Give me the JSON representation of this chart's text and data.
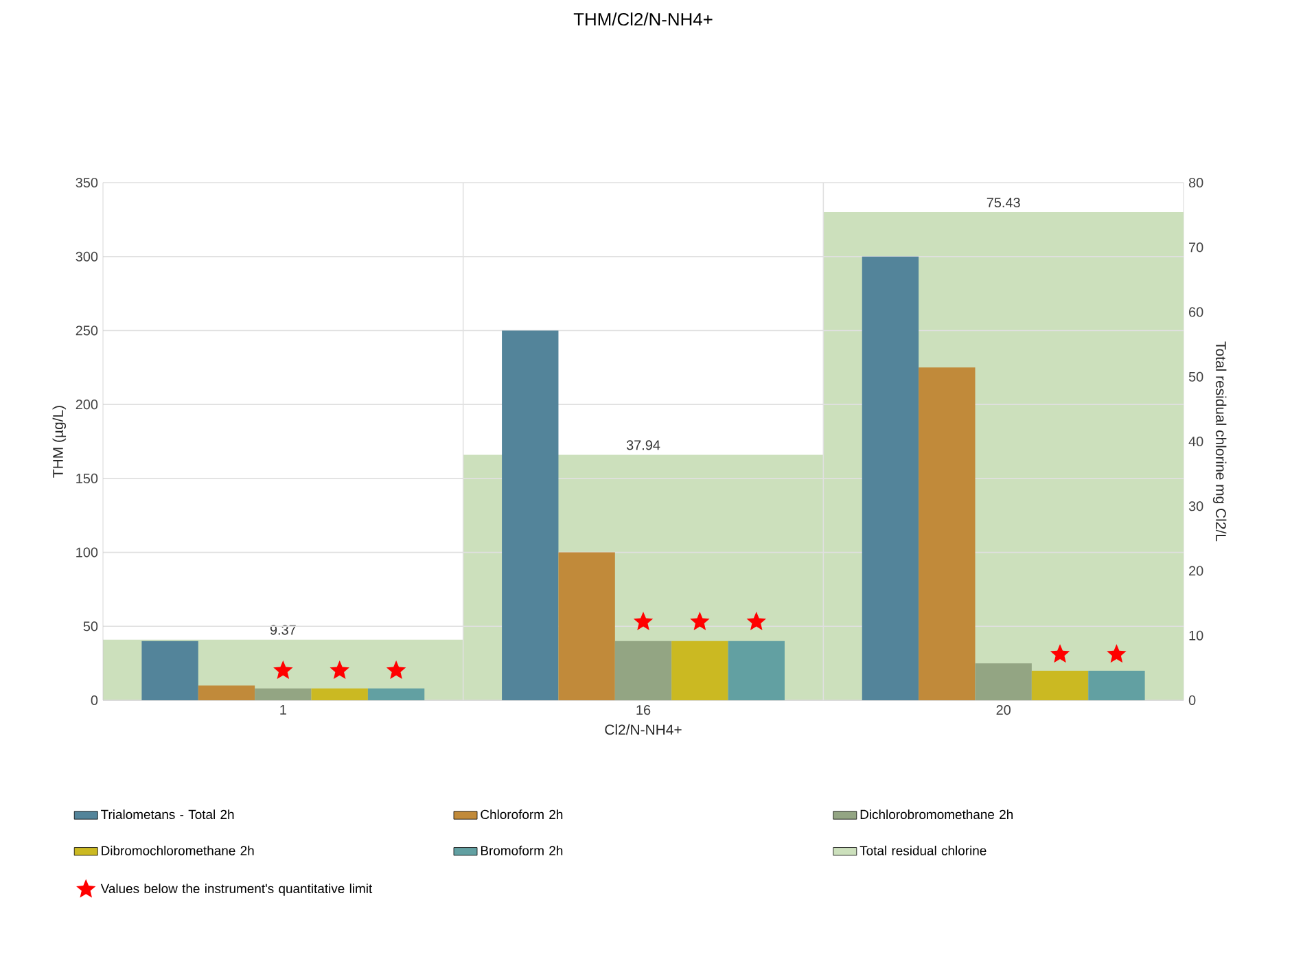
{
  "chart_data": {
    "type": "bar",
    "title": "THM/Cl2/N-NH4+",
    "xlabel": "Cl2/N-NH4+",
    "ylabel": "THM  (µg/L)",
    "y2label": "Total residual chlorine mg Cl2/L",
    "categories": [
      "1",
      "16",
      "20"
    ],
    "ylim": [
      0,
      350
    ],
    "yticks": [
      0,
      50,
      100,
      150,
      200,
      250,
      300,
      350
    ],
    "y2lim": [
      0,
      80
    ],
    "y2ticks": [
      0,
      10,
      20,
      30,
      40,
      50,
      60,
      70,
      80
    ],
    "grid": true,
    "legend": "bottom",
    "series": [
      {
        "name": "Trialometans - Total 2h",
        "color": "#53849a",
        "values": [
          40,
          250,
          300
        ]
      },
      {
        "name": "Chloroform 2h",
        "color": "#c18a3a",
        "values": [
          10,
          100,
          225
        ]
      },
      {
        "name": "Dichlorobromomethane 2h",
        "color": "#93a583",
        "values": [
          8,
          40,
          25
        ]
      },
      {
        "name": "Dibromochloromethane 2h",
        "color": "#cbb922",
        "values": [
          8,
          40,
          20
        ]
      },
      {
        "name": "Bromoform 2h",
        "color": "#62a0a2",
        "values": [
          8,
          40,
          20
        ]
      },
      {
        "name": "Total residual chlorine",
        "color": "#cce0bc",
        "axis": "y2",
        "values": [
          9.37,
          37.94,
          75.43
        ],
        "value_labels": [
          "9.37",
          "37.94",
          "75.43"
        ]
      },
      {
        "name": "Values below the instrument's quantitative limit",
        "type": "scatter",
        "marker": "star",
        "color": "#ff0000",
        "x": [
          "1",
          "1",
          "1",
          "16",
          "16",
          "16",
          "20",
          "20"
        ],
        "values": [
          20,
          20,
          20,
          53,
          53,
          53,
          31,
          31
        ]
      }
    ]
  }
}
